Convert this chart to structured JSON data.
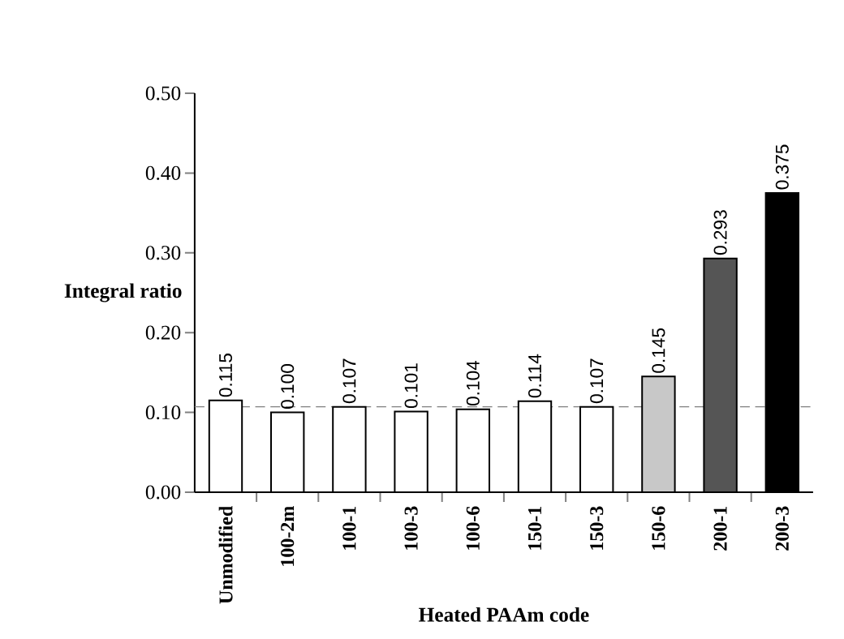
{
  "chart_data": {
    "type": "bar",
    "xlabel": "Heated PAAm code",
    "ylabel": "Integral ratio",
    "categories": [
      "Unmodified",
      "100-2m",
      "100-1",
      "100-3",
      "100-6",
      "150-1",
      "150-3",
      "150-6",
      "200-1",
      "200-3"
    ],
    "values": [
      0.115,
      0.1,
      0.107,
      0.101,
      0.104,
      0.114,
      0.107,
      0.145,
      0.293,
      0.375
    ],
    "value_labels": [
      "0.115",
      "0.100",
      "0.107",
      "0.101",
      "0.104",
      "0.114",
      "0.107",
      "0.145",
      "0.293",
      "0.375"
    ],
    "colors": [
      "#ffffff",
      "#ffffff",
      "#ffffff",
      "#ffffff",
      "#ffffff",
      "#ffffff",
      "#ffffff",
      "#c8c8c8",
      "#555555",
      "#000000"
    ],
    "ylim": [
      0,
      0.5
    ],
    "yticks": [
      {
        "value": 0,
        "label": "0.00"
      },
      {
        "value": 0.1,
        "label": "0.10"
      },
      {
        "value": 0.2,
        "label": "0.20"
      },
      {
        "value": 0.3,
        "label": "0.30"
      },
      {
        "value": 0.4,
        "label": "0.40"
      },
      {
        "value": 0.5,
        "label": "0.50"
      }
    ],
    "ref_lines": [
      {
        "axis": "y",
        "value": 0.107,
        "color": "#808080",
        "line_style": "dashed"
      }
    ]
  }
}
